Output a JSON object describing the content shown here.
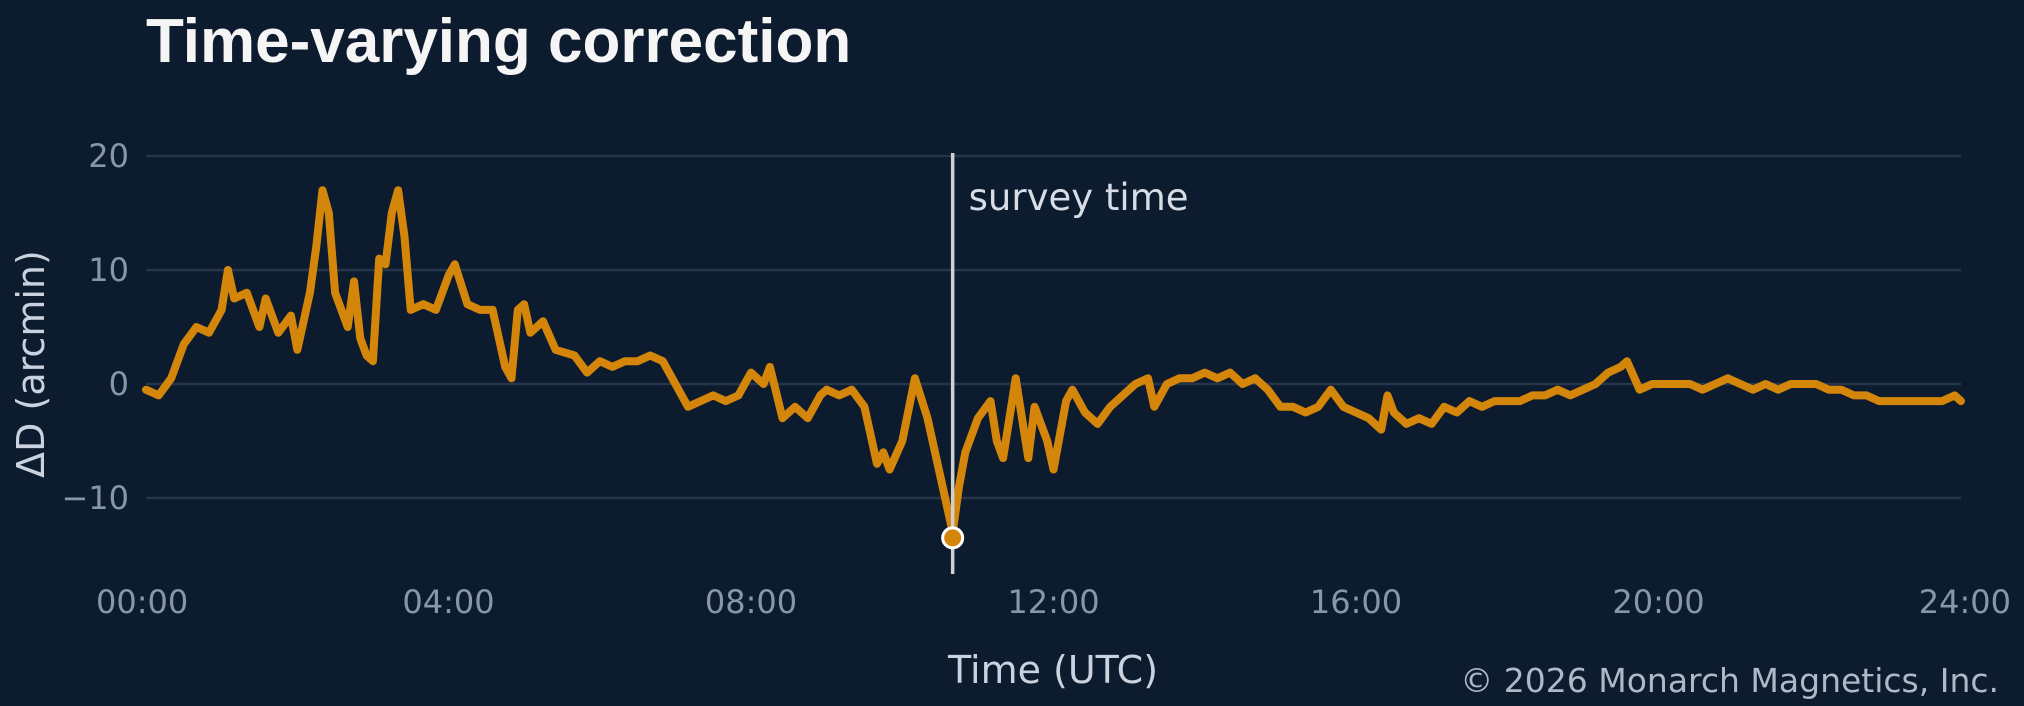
{
  "chart_data": {
    "type": "line",
    "title": "Time-varying correction",
    "xlabel": "Time (UTC)",
    "ylabel": "ΔD (arcmin)",
    "xlim": [
      "00:00",
      "24:00"
    ],
    "ylim": [
      -17,
      21
    ],
    "x_ticks": [
      "00:00",
      "04:00",
      "08:00",
      "12:00",
      "16:00",
      "20:00",
      "24:00"
    ],
    "y_ticks": [
      20,
      10,
      0,
      -10
    ],
    "y_tick_labels": [
      "20",
      "10",
      "0",
      "−10"
    ],
    "grid": "horizontal",
    "annotation": {
      "label": "survey time",
      "time": "10:40",
      "value": -13.5
    },
    "series": [
      {
        "color": "#d4860b",
        "points": [
          [
            "00:00",
            -0.5
          ],
          [
            "00:10",
            -1.0
          ],
          [
            "00:20",
            0.5
          ],
          [
            "00:30",
            3.5
          ],
          [
            "00:40",
            5.0
          ],
          [
            "00:50",
            4.5
          ],
          [
            "01:00",
            6.5
          ],
          [
            "01:05",
            10.0
          ],
          [
            "01:10",
            7.5
          ],
          [
            "01:20",
            8.0
          ],
          [
            "01:30",
            5.0
          ],
          [
            "01:35",
            7.5
          ],
          [
            "01:45",
            4.5
          ],
          [
            "01:55",
            6.0
          ],
          [
            "02:00",
            3.0
          ],
          [
            "02:10",
            8.0
          ],
          [
            "02:15",
            12.0
          ],
          [
            "02:20",
            17.0
          ],
          [
            "02:25",
            15.0
          ],
          [
            "02:30",
            8.0
          ],
          [
            "02:40",
            5.0
          ],
          [
            "02:45",
            9.0
          ],
          [
            "02:50",
            4.0
          ],
          [
            "02:55",
            2.5
          ],
          [
            "03:00",
            2.0
          ],
          [
            "03:05",
            11.0
          ],
          [
            "03:10",
            10.5
          ],
          [
            "03:15",
            15.0
          ],
          [
            "03:20",
            17.0
          ],
          [
            "03:25",
            13.0
          ],
          [
            "03:30",
            6.5
          ],
          [
            "03:40",
            7.0
          ],
          [
            "03:50",
            6.5
          ],
          [
            "04:00",
            9.5
          ],
          [
            "04:05",
            10.5
          ],
          [
            "04:15",
            7.0
          ],
          [
            "04:25",
            6.5
          ],
          [
            "04:35",
            6.5
          ],
          [
            "04:45",
            1.5
          ],
          [
            "04:50",
            0.5
          ],
          [
            "04:55",
            6.5
          ],
          [
            "05:00",
            7.0
          ],
          [
            "05:05",
            4.5
          ],
          [
            "05:15",
            5.5
          ],
          [
            "05:25",
            3.0
          ],
          [
            "05:40",
            2.5
          ],
          [
            "05:50",
            1.0
          ],
          [
            "06:00",
            2.0
          ],
          [
            "06:10",
            1.5
          ],
          [
            "06:20",
            2.0
          ],
          [
            "06:30",
            2.0
          ],
          [
            "06:40",
            2.5
          ],
          [
            "06:50",
            2.0
          ],
          [
            "07:00",
            0.0
          ],
          [
            "07:10",
            -2.0
          ],
          [
            "07:20",
            -1.5
          ],
          [
            "07:30",
            -1.0
          ],
          [
            "07:40",
            -1.5
          ],
          [
            "07:50",
            -1.0
          ],
          [
            "08:00",
            1.0
          ],
          [
            "08:10",
            0.0
          ],
          [
            "08:15",
            1.5
          ],
          [
            "08:25",
            -3.0
          ],
          [
            "08:35",
            -2.0
          ],
          [
            "08:45",
            -3.0
          ],
          [
            "08:55",
            -1.0
          ],
          [
            "09:00",
            -0.5
          ],
          [
            "09:10",
            -1.0
          ],
          [
            "09:20",
            -0.5
          ],
          [
            "09:30",
            -2.0
          ],
          [
            "09:40",
            -7.0
          ],
          [
            "09:45",
            -6.0
          ],
          [
            "09:50",
            -7.5
          ],
          [
            "10:00",
            -5.0
          ],
          [
            "10:10",
            0.5
          ],
          [
            "10:20",
            -3.0
          ],
          [
            "10:30",
            -8.0
          ],
          [
            "10:40",
            -13.0
          ],
          [
            "10:45",
            -9.0
          ],
          [
            "10:50",
            -6.0
          ],
          [
            "11:00",
            -3.0
          ],
          [
            "11:10",
            -1.5
          ],
          [
            "11:15",
            -5.0
          ],
          [
            "11:20",
            -6.5
          ],
          [
            "11:25",
            -3.0
          ],
          [
            "11:30",
            0.5
          ],
          [
            "11:35",
            -3.0
          ],
          [
            "11:40",
            -6.5
          ],
          [
            "11:45",
            -2.0
          ],
          [
            "11:55",
            -5.0
          ],
          [
            "12:00",
            -7.5
          ],
          [
            "12:10",
            -1.5
          ],
          [
            "12:15",
            -0.5
          ],
          [
            "12:25",
            -2.5
          ],
          [
            "12:35",
            -3.5
          ],
          [
            "12:45",
            -2.0
          ],
          [
            "12:55",
            -1.0
          ],
          [
            "13:05",
            0.0
          ],
          [
            "13:15",
            0.5
          ],
          [
            "13:20",
            -2.0
          ],
          [
            "13:30",
            0.0
          ],
          [
            "13:40",
            0.5
          ],
          [
            "13:50",
            0.5
          ],
          [
            "14:00",
            1.0
          ],
          [
            "14:10",
            0.5
          ],
          [
            "14:20",
            1.0
          ],
          [
            "14:30",
            0.0
          ],
          [
            "14:40",
            0.5
          ],
          [
            "14:50",
            -0.5
          ],
          [
            "15:00",
            -2.0
          ],
          [
            "15:10",
            -2.0
          ],
          [
            "15:20",
            -2.5
          ],
          [
            "15:30",
            -2.0
          ],
          [
            "15:40",
            -0.5
          ],
          [
            "15:50",
            -2.0
          ],
          [
            "16:00",
            -2.5
          ],
          [
            "16:10",
            -3.0
          ],
          [
            "16:20",
            -4.0
          ],
          [
            "16:25",
            -1.0
          ],
          [
            "16:30",
            -2.5
          ],
          [
            "16:40",
            -3.5
          ],
          [
            "16:50",
            -3.0
          ],
          [
            "17:00",
            -3.5
          ],
          [
            "17:10",
            -2.0
          ],
          [
            "17:20",
            -2.5
          ],
          [
            "17:30",
            -1.5
          ],
          [
            "17:40",
            -2.0
          ],
          [
            "17:50",
            -1.5
          ],
          [
            "18:00",
            -1.5
          ],
          [
            "18:10",
            -1.5
          ],
          [
            "18:20",
            -1.0
          ],
          [
            "18:30",
            -1.0
          ],
          [
            "18:40",
            -0.5
          ],
          [
            "18:50",
            -1.0
          ],
          [
            "19:00",
            -0.5
          ],
          [
            "19:10",
            0.0
          ],
          [
            "19:20",
            1.0
          ],
          [
            "19:30",
            1.5
          ],
          [
            "19:35",
            2.0
          ],
          [
            "19:45",
            -0.5
          ],
          [
            "19:55",
            0.0
          ],
          [
            "20:05",
            0.0
          ],
          [
            "20:15",
            0.0
          ],
          [
            "20:25",
            0.0
          ],
          [
            "20:35",
            -0.5
          ],
          [
            "20:45",
            0.0
          ],
          [
            "20:55",
            0.5
          ],
          [
            "21:05",
            0.0
          ],
          [
            "21:15",
            -0.5
          ],
          [
            "21:25",
            0.0
          ],
          [
            "21:35",
            -0.5
          ],
          [
            "21:45",
            0.0
          ],
          [
            "21:55",
            0.0
          ],
          [
            "22:05",
            0.0
          ],
          [
            "22:15",
            -0.5
          ],
          [
            "22:25",
            -0.5
          ],
          [
            "22:35",
            -1.0
          ],
          [
            "22:45",
            -1.0
          ],
          [
            "22:55",
            -1.5
          ],
          [
            "23:05",
            -1.5
          ],
          [
            "23:15",
            -1.5
          ],
          [
            "23:25",
            -1.5
          ],
          [
            "23:35",
            -1.5
          ],
          [
            "23:45",
            -1.5
          ],
          [
            "23:55",
            -1.0
          ],
          [
            "24:00",
            -1.5
          ]
        ]
      }
    ]
  },
  "credit": "© 2026 Monarch Magnetics, Inc.",
  "colors": {
    "background": "#0d1b2e",
    "line": "#d4860b",
    "grid": "#263549",
    "marker_line": "#d0d0d0"
  }
}
